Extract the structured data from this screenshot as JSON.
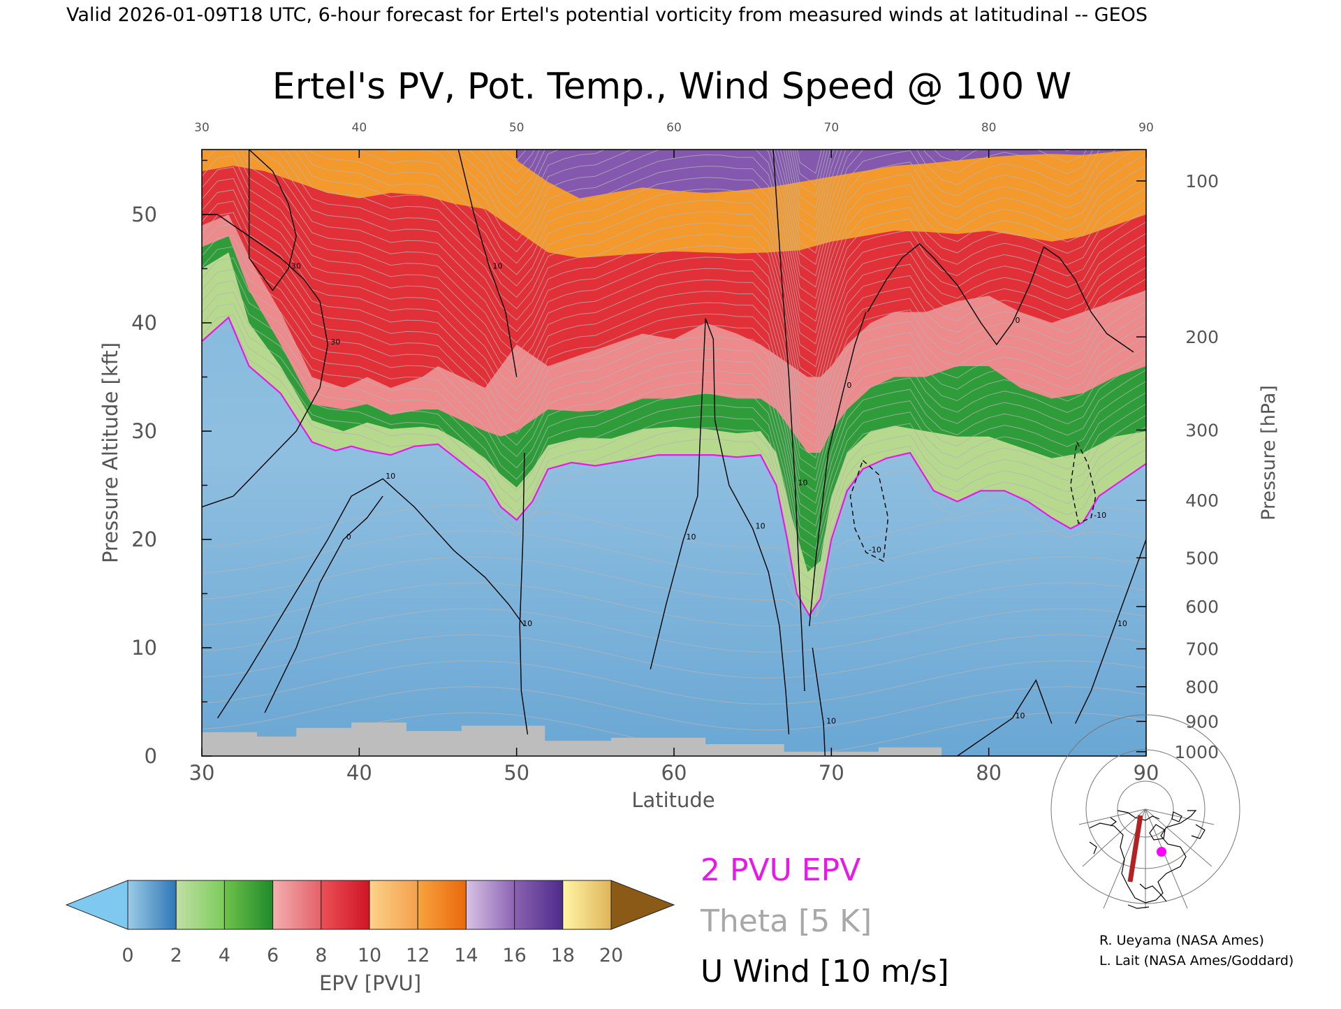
{
  "header": {
    "valid_line": "Valid 2026-01-09T18 UTC, 6-hour forecast for Ertel's potential vorticity from measured winds at latitudinal -- GEOS"
  },
  "chart_data": {
    "type": "heatmap",
    "title": "Ertel's PV, Pot. Temp., Wind Speed @ 100 W",
    "xlabel": "Latitude",
    "ylabel": "Pressure Altitude [kft]",
    "y2label": "Pressure [hPa]",
    "xlim": [
      30,
      90
    ],
    "ylim": [
      0,
      56
    ],
    "x_ticks": [
      "30",
      "40",
      "50",
      "60",
      "70",
      "80",
      "90"
    ],
    "y_ticks": [
      "0",
      "10",
      "20",
      "30",
      "40",
      "50"
    ],
    "pressure_ticks": [
      {
        "label": "100",
        "kft": 53.1
      },
      {
        "label": "200",
        "kft": 38.7
      },
      {
        "label": "300",
        "kft": 30.1
      },
      {
        "label": "400",
        "kft": 23.6
      },
      {
        "label": "500",
        "kft": 18.3
      },
      {
        "label": "600",
        "kft": 13.8
      },
      {
        "label": "700",
        "kft": 9.9
      },
      {
        "label": "800",
        "kft": 6.4
      },
      {
        "label": "900",
        "kft": 3.2
      },
      {
        "label": "1000",
        "kft": 0.4
      }
    ],
    "tropopause_2pvu_kft": {
      "lat": [
        30,
        31.7,
        33,
        35,
        37,
        38.5,
        39.5,
        40.5,
        42,
        43.5,
        45,
        46.5,
        48,
        49,
        50,
        51,
        52,
        53.5,
        55,
        57,
        59,
        61,
        62.5,
        64,
        65.5,
        66.5,
        67.2,
        67.8,
        68.6,
        69.3,
        70,
        71,
        72,
        73.5,
        75,
        76.5,
        78,
        79.5,
        81,
        82.5,
        84,
        85.2,
        86,
        87,
        88,
        89,
        90
      ],
      "values": [
        38.3,
        40.5,
        36,
        33.5,
        29,
        28.2,
        28.6,
        28.2,
        27.8,
        28.6,
        28.8,
        27.1,
        25.4,
        23,
        21.8,
        23.5,
        26.5,
        27.1,
        26.8,
        27.3,
        27.8,
        27.8,
        27.8,
        27.6,
        27.8,
        25,
        20,
        15,
        13,
        14.5,
        20,
        24.5,
        26.5,
        27.5,
        28,
        24.5,
        23.5,
        24.5,
        24.5,
        23.5,
        22,
        21,
        21.6,
        24,
        25,
        26,
        27
      ]
    },
    "pv_bands_pvu": [
      {
        "pvu": 4,
        "lat": [
          30,
          31.7,
          33,
          35,
          37,
          39,
          40.5,
          42,
          44,
          45,
          46.5,
          48,
          49,
          50,
          51,
          52,
          54,
          56,
          58,
          60,
          62,
          64,
          65.5,
          66.5,
          67.5,
          68.5,
          69.3,
          70,
          71,
          72.5,
          74,
          76,
          78,
          80,
          82,
          84,
          86,
          88,
          90
        ],
        "values": [
          45,
          46.5,
          40,
          36,
          31,
          30,
          30.8,
          30.2,
          30.4,
          30.2,
          29,
          27.5,
          26,
          24.8,
          26.5,
          28.7,
          29.4,
          29.3,
          30.2,
          30.4,
          30.2,
          29.8,
          30,
          28,
          22,
          17,
          18,
          24,
          28,
          30,
          30.5,
          30,
          29.5,
          29.5,
          28.5,
          27.5,
          28,
          29.5,
          30
        ]
      },
      {
        "pvu": 6,
        "lat": [
          30,
          31.7,
          33,
          35,
          37,
          39,
          40.5,
          42,
          44,
          45,
          46.5,
          48,
          49,
          50,
          51,
          52,
          54,
          56,
          58,
          60,
          62,
          64,
          65.5,
          66.5,
          67.5,
          68.5,
          69.3,
          70,
          71,
          72.5,
          74,
          76,
          78,
          80,
          82,
          84,
          86,
          88,
          90
        ],
        "values": [
          47,
          48,
          43,
          38,
          32.5,
          32,
          32.5,
          31.5,
          32,
          32,
          31,
          30,
          29.5,
          30,
          31,
          32,
          31.8,
          32,
          33,
          33,
          33.5,
          33,
          33,
          32,
          30,
          28,
          28,
          30,
          32,
          34,
          35,
          35,
          36,
          36,
          34,
          33,
          33.5,
          35,
          36
        ]
      },
      {
        "pvu": 8,
        "lat": [
          30,
          31.7,
          33,
          35,
          37,
          39,
          40.5,
          42,
          44,
          45,
          46.5,
          48,
          49,
          50,
          51,
          52,
          54,
          56,
          58,
          60,
          62,
          64,
          65.5,
          66.5,
          67.5,
          68.5,
          69.3,
          70,
          71,
          72.5,
          74,
          76,
          78,
          80,
          82,
          84,
          86,
          88,
          90
        ],
        "values": [
          49,
          50,
          46,
          41,
          35,
          34,
          35,
          34,
          35,
          36,
          35,
          34,
          36,
          38,
          37,
          36,
          37,
          38,
          39,
          38.5,
          40,
          39,
          38,
          37,
          36,
          35,
          35,
          36,
          38,
          40,
          41,
          41,
          42,
          42.5,
          41,
          40,
          41,
          42,
          43
        ]
      },
      {
        "pvu": 12,
        "lat": [
          30,
          32,
          34,
          36,
          38,
          40,
          42,
          44,
          46,
          48,
          50,
          52,
          54,
          56,
          58,
          60,
          62,
          64,
          66,
          68,
          70,
          72,
          74,
          76,
          78,
          80,
          82,
          84,
          86,
          88,
          90
        ],
        "values": [
          54,
          54.5,
          54,
          53,
          52,
          51.5,
          52,
          51.8,
          51,
          50.5,
          48.5,
          46.5,
          46,
          46.2,
          46.4,
          46.6,
          46.5,
          46.4,
          46.5,
          46.7,
          47.5,
          48,
          48.5,
          48.4,
          48.2,
          48.5,
          48,
          47.5,
          48,
          49,
          50
        ]
      },
      {
        "pvu": 16,
        "lat": [
          50,
          52,
          54,
          56,
          58,
          60,
          62,
          64,
          66,
          68,
          70,
          72,
          74,
          76,
          78,
          80,
          82,
          84,
          86,
          88,
          90
        ],
        "values": [
          55,
          53,
          51.5,
          52,
          52.5,
          52.2,
          52,
          52.2,
          52.5,
          53,
          53.5,
          54,
          54.5,
          54.7,
          55,
          55.3,
          55.5,
          55.6,
          55.5,
          55.8,
          56
        ]
      }
    ],
    "wind_contours": [
      {
        "label": "30",
        "lat": [
          30,
          31,
          33,
          35,
          36.5,
          37.5,
          38,
          37.5,
          36,
          34,
          32,
          30
        ],
        "values": [
          50,
          50,
          48,
          46,
          44,
          42,
          38,
          34,
          30,
          27,
          24,
          23
        ]
      },
      {
        "label": "30",
        "lat": [
          33,
          34.5,
          35.5,
          36,
          35.5,
          34.5,
          33,
          33
        ],
        "values": [
          56,
          54,
          51,
          48,
          45,
          43,
          46,
          56
        ]
      },
      {
        "label": "10",
        "lat": [
          31,
          33,
          35.5,
          38,
          39.5,
          41.5,
          43.5,
          46,
          48,
          49.5,
          50.5
        ],
        "values": [
          3.5,
          8,
          14,
          20,
          24,
          25.6,
          23,
          19,
          16.5,
          14,
          12
        ]
      },
      {
        "label": "0",
        "lat": [
          34,
          36,
          37.5,
          39,
          40.5,
          41.5
        ],
        "values": [
          4,
          10,
          16,
          20,
          22,
          24
        ]
      },
      {
        "label": "10",
        "lat": [
          46.3,
          47.3,
          48.3,
          49.3,
          50
        ],
        "values": [
          56,
          50,
          45,
          41,
          35
        ]
      },
      {
        "label": "10",
        "lat": [
          50.5,
          50.4,
          50.2,
          50.3,
          50.7
        ],
        "values": [
          28,
          20,
          12,
          6,
          2
        ]
      },
      {
        "label": "10",
        "lat": [
          58.5,
          59.5,
          60.6,
          61.5,
          62
        ],
        "values": [
          8,
          14,
          20,
          24,
          40.4
        ]
      },
      {
        "label": "10",
        "lat": [
          62,
          62.5,
          62.6,
          63.5,
          65,
          66,
          66.7,
          67.1,
          67.3
        ],
        "values": [
          40.4,
          38.5,
          31,
          25,
          21,
          17,
          12,
          6,
          2
        ]
      },
      {
        "label": "10",
        "lat": [
          66.3,
          66.8,
          67.3,
          67.7,
          68,
          68.3
        ],
        "values": [
          56,
          45,
          35,
          25,
          15,
          6
        ]
      },
      {
        "label": "0",
        "lat": [
          68.6,
          69,
          69.8,
          70.8,
          71.5,
          72.2
        ],
        "values": [
          12,
          18,
          28,
          34,
          38,
          41
        ]
      },
      {
        "label": "10",
        "lat": [
          68.8,
          69.2,
          69.5,
          69.6
        ],
        "values": [
          10,
          6,
          3,
          0
        ]
      },
      {
        "label": "-10",
        "lat": [
          72,
          73,
          73.6,
          73.3,
          72.2,
          71.5,
          71.2,
          72
        ],
        "values": [
          27.3,
          26,
          22,
          18,
          18.8,
          21,
          24,
          27.3
        ]
      },
      {
        "label": "-10",
        "lat": [
          85.6,
          86.3,
          86.8,
          86.5,
          85.7,
          85.2,
          85.6
        ],
        "values": [
          29,
          27,
          24,
          22,
          21.5,
          25,
          29
        ]
      },
      {
        "label": "0",
        "lat": [
          72.3,
          73.5,
          74.5,
          75.6,
          76.5,
          78,
          79.5,
          80.5,
          81.5,
          82.6,
          83.5,
          84.5,
          85.5,
          86.5,
          87.5,
          88.5,
          89.2
        ],
        "values": [
          41,
          44,
          46,
          47.3,
          46,
          43.5,
          40,
          38,
          40,
          43.5,
          47,
          46,
          44,
          41,
          39,
          38,
          37.3
        ]
      },
      {
        "label": "10",
        "lat": [
          85.5,
          86.5,
          88,
          89,
          90
        ],
        "values": [
          3,
          6,
          12,
          16,
          20
        ]
      },
      {
        "label": "10",
        "lat": [
          78,
          79,
          81.5,
          83,
          84
        ],
        "values": [
          0,
          1,
          3.5,
          7,
          3
        ]
      }
    ],
    "theta_levels_K": [
      290,
      300,
      320,
      340,
      350,
      370,
      380,
      410,
      420
    ],
    "below_ground_shading": "grey",
    "colorbar": {
      "label": "EPV [PVU]",
      "tick_labels": [
        "0",
        "2",
        "4",
        "6",
        "8",
        "10",
        "12",
        "14",
        "16",
        "18",
        "20"
      ],
      "under_color": "#7fc8f0",
      "over_color": "#8a5a16",
      "bins": [
        {
          "from": 0,
          "to": 2,
          "colors": [
            "#9ccbe6",
            "#2f77b6"
          ]
        },
        {
          "from": 2,
          "to": 4,
          "colors": [
            "#c2dfa6",
            "#7ccb5a"
          ]
        },
        {
          "from": 4,
          "to": 6,
          "colors": [
            "#6fc24b",
            "#208a2a"
          ]
        },
        {
          "from": 6,
          "to": 8,
          "colors": [
            "#f3b0b0",
            "#e56068"
          ]
        },
        {
          "from": 8,
          "to": 10,
          "colors": [
            "#ec5058",
            "#cf1424"
          ]
        },
        {
          "from": 10,
          "to": 12,
          "colors": [
            "#fcd28a",
            "#f4a04c"
          ]
        },
        {
          "from": 12,
          "to": 14,
          "colors": [
            "#f8a33e",
            "#e9690c"
          ]
        },
        {
          "from": 14,
          "to": 16,
          "colors": [
            "#d8c2e4",
            "#8c64b4"
          ]
        },
        {
          "from": 16,
          "to": 18,
          "colors": [
            "#8a62b0",
            "#4e2c8c"
          ]
        },
        {
          "from": 18,
          "to": 20,
          "colors": [
            "#fff6a6",
            "#e0b45a"
          ]
        }
      ]
    },
    "legend": {
      "epv_line": "2 PVU EPV",
      "epv_color": "#e818e8",
      "theta_line": "Theta [5 K]",
      "theta_color": "#a8a8a8",
      "wind_line": "U Wind [10 m/s]",
      "wind_color": "#000000"
    }
  },
  "map_inset": {
    "section_line_color": "#b22222",
    "marker_color": "#ff00ff"
  },
  "credits": {
    "line1": "R. Ueyama (NASA Ames)",
    "line2": "L. Lait (NASA Ames/Goddard)"
  }
}
